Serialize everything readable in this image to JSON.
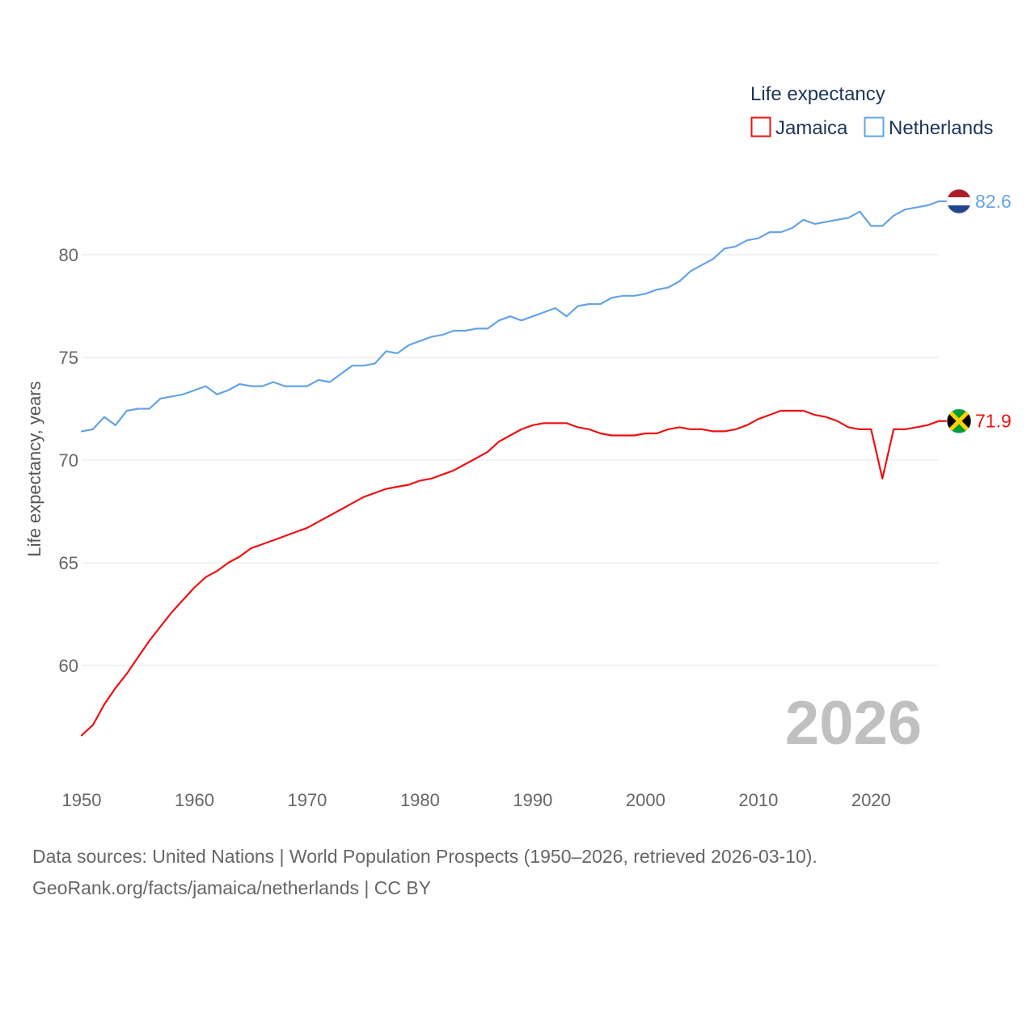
{
  "chart_data": {
    "type": "line",
    "title": "Life expectancy",
    "ylabel": "Life expectancy, years",
    "xlabel": "",
    "xlim": [
      1950,
      2026
    ],
    "ylim": [
      55.4,
      83.6
    ],
    "yticks": [
      60,
      65,
      70,
      75,
      80
    ],
    "xticks": [
      1950,
      1960,
      1970,
      1980,
      1990,
      2000,
      2010,
      2020
    ],
    "grid": true,
    "legend_position": "top-right",
    "current_year_label": "2026",
    "x": [
      1950,
      1951,
      1952,
      1953,
      1954,
      1955,
      1956,
      1957,
      1958,
      1959,
      1960,
      1961,
      1962,
      1963,
      1964,
      1965,
      1966,
      1967,
      1968,
      1969,
      1970,
      1971,
      1972,
      1973,
      1974,
      1975,
      1976,
      1977,
      1978,
      1979,
      1980,
      1981,
      1982,
      1983,
      1984,
      1985,
      1986,
      1987,
      1988,
      1989,
      1990,
      1991,
      1992,
      1993,
      1994,
      1995,
      1996,
      1997,
      1998,
      1999,
      2000,
      2001,
      2002,
      2003,
      2004,
      2005,
      2006,
      2007,
      2008,
      2009,
      2010,
      2011,
      2012,
      2013,
      2014,
      2015,
      2016,
      2017,
      2018,
      2019,
      2020,
      2021,
      2022,
      2023,
      2024,
      2025,
      2026
    ],
    "series": [
      {
        "name": "Jamaica",
        "color": "#ee1111",
        "end_label": "71.9",
        "flag_icon": "jamaica-flag-icon",
        "values": [
          56.6,
          57.1,
          58.1,
          58.9,
          59.6,
          60.4,
          61.2,
          61.9,
          62.6,
          63.2,
          63.8,
          64.3,
          64.6,
          65.0,
          65.3,
          65.7,
          65.9,
          66.1,
          66.3,
          66.5,
          66.7,
          67.0,
          67.3,
          67.6,
          67.9,
          68.2,
          68.4,
          68.6,
          68.7,
          68.8,
          69.0,
          69.1,
          69.3,
          69.5,
          69.8,
          70.1,
          70.4,
          70.9,
          71.2,
          71.5,
          71.7,
          71.8,
          71.8,
          71.8,
          71.6,
          71.5,
          71.3,
          71.2,
          71.2,
          71.2,
          71.3,
          71.3,
          71.5,
          71.6,
          71.5,
          71.5,
          71.4,
          71.4,
          71.5,
          71.7,
          72.0,
          72.2,
          72.4,
          72.4,
          72.4,
          72.2,
          72.1,
          71.9,
          71.6,
          71.5,
          71.5,
          69.1,
          71.5,
          71.5,
          71.6,
          71.7,
          71.9
        ]
      },
      {
        "name": "Netherlands",
        "color": "#63a4e6",
        "end_label": "82.6",
        "flag_icon": "netherlands-flag-icon",
        "values": [
          71.4,
          71.5,
          72.1,
          71.7,
          72.4,
          72.5,
          72.5,
          73.0,
          73.1,
          73.2,
          73.4,
          73.6,
          73.2,
          73.4,
          73.7,
          73.6,
          73.6,
          73.8,
          73.6,
          73.6,
          73.6,
          73.9,
          73.8,
          74.2,
          74.6,
          74.6,
          74.7,
          75.3,
          75.2,
          75.6,
          75.8,
          76.0,
          76.1,
          76.3,
          76.3,
          76.4,
          76.4,
          76.8,
          77.0,
          76.8,
          77.0,
          77.2,
          77.4,
          77.0,
          77.5,
          77.6,
          77.6,
          77.9,
          78.0,
          78.0,
          78.1,
          78.3,
          78.4,
          78.7,
          79.2,
          79.5,
          79.8,
          80.3,
          80.4,
          80.7,
          80.8,
          81.1,
          81.1,
          81.3,
          81.7,
          81.5,
          81.6,
          81.7,
          81.8,
          82.1,
          81.4,
          81.4,
          81.9,
          82.2,
          82.3,
          82.4,
          82.6
        ]
      }
    ]
  },
  "footer": {
    "line1": "Data sources: United Nations | World Population Prospects (1950–2026, retrieved 2026-03-10).",
    "line2": "GeoRank.org/facts/jamaica/netherlands | CC BY"
  }
}
